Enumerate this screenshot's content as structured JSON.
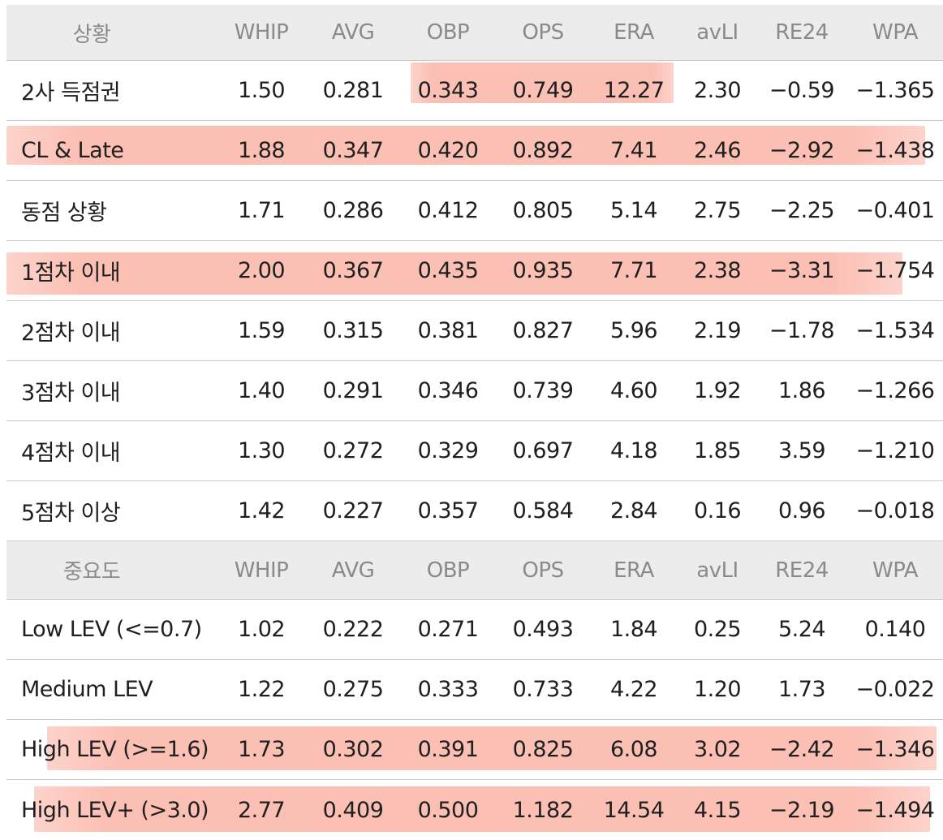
{
  "columns": [
    "WHIP",
    "AVG",
    "OBP",
    "OPS",
    "ERA",
    "avLI",
    "RE24",
    "WPA"
  ],
  "situation_header": "상황",
  "importance_header": "중요도",
  "situation_rows": [
    {
      "label": "2사 득점권",
      "values": [
        "1.50",
        "0.281",
        "0.343",
        "0.749",
        "12.27",
        "2.30",
        "−0.59",
        "−1.365"
      ]
    },
    {
      "label": "CL & Late",
      "values": [
        "1.88",
        "0.347",
        "0.420",
        "0.892",
        "7.41",
        "2.46",
        "−2.92",
        "−1.438"
      ]
    },
    {
      "label": "동점 상황",
      "values": [
        "1.71",
        "0.286",
        "0.412",
        "0.805",
        "5.14",
        "2.75",
        "−2.25",
        "−0.401"
      ]
    },
    {
      "label": "1점차 이내",
      "values": [
        "2.00",
        "0.367",
        "0.435",
        "0.935",
        "7.71",
        "2.38",
        "−3.31",
        "−1.754"
      ]
    },
    {
      "label": "2점차 이내",
      "values": [
        "1.59",
        "0.315",
        "0.381",
        "0.827",
        "5.96",
        "2.19",
        "−1.78",
        "−1.534"
      ]
    },
    {
      "label": "3점차 이내",
      "values": [
        "1.40",
        "0.291",
        "0.346",
        "0.739",
        "4.60",
        "1.92",
        "1.86",
        "−1.266"
      ]
    },
    {
      "label": "4점차 이내",
      "values": [
        "1.30",
        "0.272",
        "0.329",
        "0.697",
        "4.18",
        "1.85",
        "3.59",
        "−1.210"
      ]
    },
    {
      "label": "5점차 이상",
      "values": [
        "1.42",
        "0.227",
        "0.357",
        "0.584",
        "2.84",
        "0.16",
        "0.96",
        "−0.018"
      ]
    }
  ],
  "importance_rows": [
    {
      "label": "Low LEV (<=0.7)",
      "values": [
        "1.02",
        "0.222",
        "0.271",
        "0.493",
        "1.84",
        "0.25",
        "5.24",
        "0.140"
      ]
    },
    {
      "label": "Medium LEV",
      "values": [
        "1.22",
        "0.275",
        "0.333",
        "0.733",
        "4.22",
        "1.20",
        "1.73",
        "−0.022"
      ]
    },
    {
      "label": "High LEV (>=1.6)",
      "values": [
        "1.73",
        "0.302",
        "0.391",
        "0.825",
        "6.08",
        "3.02",
        "−2.42",
        "−1.346"
      ]
    },
    {
      "label": "High LEV+ (>3.0)",
      "values": [
        "2.77",
        "0.409",
        "0.500",
        "1.182",
        "14.54",
        "4.15",
        "−2.19",
        "−1.494"
      ]
    }
  ],
  "highlight_color": "#f9b3a4"
}
